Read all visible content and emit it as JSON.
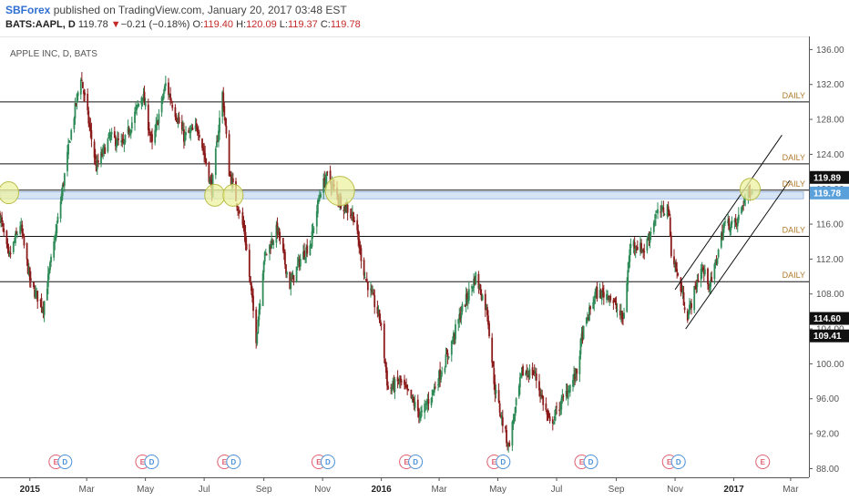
{
  "header": {
    "publisher": "SBForex",
    "published_text": "published on TradingView.com, January 20, 2017 03:48 EST",
    "symbol": "BATS:AAPL, D",
    "last": "119.78",
    "change_arrow": "▼",
    "change": "−0.21 (−0.18%)",
    "o_label": "O:",
    "o_value": "119.40",
    "h_label": "H:",
    "h_value": "120.09",
    "l_label": "L:",
    "l_value": "119.37",
    "c_label": "C:",
    "c_value": "119.78"
  },
  "chart_data": {
    "type": "candlestick",
    "title": "APPLE INC, D, BATS",
    "y_axis": {
      "ylim": [
        87,
        137.5
      ],
      "ticks": [
        88,
        92,
        96,
        100,
        104,
        108,
        112,
        116,
        120,
        124,
        128,
        132,
        136
      ],
      "tick_labels": [
        "88.00",
        "92.00",
        "96.00",
        "100.00",
        "104.00",
        "108.00",
        "112.00",
        "116.00",
        "120.00",
        "124.00",
        "128.00",
        "132.00",
        "136.00"
      ],
      "position": "right"
    },
    "x_axis": {
      "range": [
        "2014-12-01",
        "2017-03-20"
      ],
      "ticks": [
        {
          "date": "2015-01-01",
          "label": "2015",
          "bold": true
        },
        {
          "date": "2015-03-01",
          "label": "Mar"
        },
        {
          "date": "2015-05-01",
          "label": "May"
        },
        {
          "date": "2015-07-01",
          "label": "Jul"
        },
        {
          "date": "2015-09-01",
          "label": "Sep"
        },
        {
          "date": "2015-11-01",
          "label": "Nov"
        },
        {
          "date": "2016-01-01",
          "label": "2016",
          "bold": true
        },
        {
          "date": "2016-03-01",
          "label": "Mar"
        },
        {
          "date": "2016-05-01",
          "label": "May"
        },
        {
          "date": "2016-07-01",
          "label": "Jul"
        },
        {
          "date": "2016-09-01",
          "label": "Sep"
        },
        {
          "date": "2016-11-01",
          "label": "Nov"
        },
        {
          "date": "2017-01-01",
          "label": "2017",
          "bold": true
        },
        {
          "date": "2017-03-01",
          "label": "Mar"
        }
      ]
    },
    "price_path": [
      [
        "2014-12-01",
        117
      ],
      [
        "2014-12-10",
        112
      ],
      [
        "2014-12-22",
        116
      ],
      [
        "2015-01-02",
        109
      ],
      [
        "2015-01-15",
        106.5
      ],
      [
        "2015-01-28",
        115
      ],
      [
        "2015-02-12",
        126
      ],
      [
        "2015-02-23",
        133
      ],
      [
        "2015-03-11",
        122.5
      ],
      [
        "2015-03-25",
        126
      ],
      [
        "2015-04-08",
        125
      ],
      [
        "2015-04-28",
        131
      ],
      [
        "2015-05-08",
        125
      ],
      [
        "2015-05-22",
        132
      ],
      [
        "2015-06-10",
        126
      ],
      [
        "2015-06-25",
        127
      ],
      [
        "2015-07-09",
        120
      ],
      [
        "2015-07-20",
        131
      ],
      [
        "2015-07-27",
        122
      ],
      [
        "2015-08-12",
        115
      ],
      [
        "2015-08-24",
        103
      ],
      [
        "2015-09-01",
        112
      ],
      [
        "2015-09-15",
        115.5
      ],
      [
        "2015-09-28",
        109
      ],
      [
        "2015-10-09",
        112
      ],
      [
        "2015-10-20",
        114
      ],
      [
        "2015-10-30",
        120
      ],
      [
        "2015-11-06",
        121.5
      ],
      [
        "2015-11-20",
        118.5
      ],
      [
        "2015-12-03",
        117
      ],
      [
        "2015-12-15",
        110
      ],
      [
        "2015-12-31",
        105
      ],
      [
        "2016-01-08",
        97
      ],
      [
        "2016-01-20",
        98
      ],
      [
        "2016-02-01",
        96
      ],
      [
        "2016-02-11",
        94
      ],
      [
        "2016-02-24",
        97
      ],
      [
        "2016-03-10",
        101
      ],
      [
        "2016-03-24",
        106
      ],
      [
        "2016-04-08",
        110
      ],
      [
        "2016-04-20",
        106
      ],
      [
        "2016-04-28",
        97
      ],
      [
        "2016-05-12",
        90.5
      ],
      [
        "2016-05-26",
        99
      ],
      [
        "2016-06-08",
        99
      ],
      [
        "2016-06-24",
        93
      ],
      [
        "2016-07-08",
        96
      ],
      [
        "2016-07-22",
        99
      ],
      [
        "2016-07-27",
        103
      ],
      [
        "2016-08-10",
        108
      ],
      [
        "2016-08-24",
        108
      ],
      [
        "2016-09-08",
        105
      ],
      [
        "2016-09-16",
        114
      ],
      [
        "2016-09-30",
        113
      ],
      [
        "2016-10-12",
        117
      ],
      [
        "2016-10-25",
        118
      ],
      [
        "2016-10-28",
        113
      ],
      [
        "2016-11-14",
        105.5
      ],
      [
        "2016-11-28",
        111
      ],
      [
        "2016-12-08",
        109
      ],
      [
        "2016-12-22",
        116
      ],
      [
        "2017-01-04",
        116
      ],
      [
        "2017-01-12",
        119
      ],
      [
        "2017-01-19",
        119.78
      ]
    ],
    "last_candle": {
      "date": "2017-01-20",
      "open": 119.4,
      "high": 120.09,
      "low": 119.37,
      "close": 119.78
    },
    "horizontal_levels": [
      {
        "label": "DAILY",
        "value": 130
      },
      {
        "label": "DAILY",
        "value": 122.9
      },
      {
        "label": "DAILY",
        "value": 119.89
      },
      {
        "label": "DAILY",
        "value": 114.6
      },
      {
        "label": "DAILY",
        "value": 109.41
      }
    ],
    "support_band": [
      118.9,
      119.7
    ],
    "price_tags": [
      {
        "value": 119.89,
        "label": "119.89",
        "color": "#111111"
      },
      {
        "value": 119.78,
        "label": "119.78",
        "color": "#5aa1db"
      },
      {
        "value": 114.6,
        "label": "114.60",
        "color": "#111111"
      },
      {
        "value": 109.41,
        "label": "109.41",
        "color": "#111111"
      }
    ],
    "channel_lines": [
      {
        "from": [
          "2016-11-01",
          108.5
        ],
        "to": [
          "2017-02-20",
          126.2
        ]
      },
      {
        "from": [
          "2016-11-12",
          104
        ],
        "to": [
          "2017-02-28",
          121
        ]
      }
    ],
    "circles": [
      {
        "date": "2014-12-10",
        "value": 119.6
      },
      {
        "date": "2015-07-12",
        "value": 119.3
      },
      {
        "date": "2015-07-31",
        "value": 119.3
      },
      {
        "date": "2015-11-19",
        "value": 119.8
      },
      {
        "date": "2017-01-18",
        "value": 120
      }
    ],
    "events": [
      {
        "date": "2015-01-28",
        "items": [
          "E",
          "D"
        ]
      },
      {
        "date": "2015-04-28",
        "items": [
          "E",
          "D"
        ]
      },
      {
        "date": "2015-07-22",
        "items": [
          "E",
          "D"
        ]
      },
      {
        "date": "2015-10-28",
        "items": [
          "E",
          "D"
        ]
      },
      {
        "date": "2016-01-27",
        "items": [
          "E",
          "D"
        ]
      },
      {
        "date": "2016-04-27",
        "items": [
          "E",
          "D"
        ]
      },
      {
        "date": "2016-07-27",
        "items": [
          "E",
          "D"
        ]
      },
      {
        "date": "2016-10-26",
        "items": [
          "E",
          "D"
        ]
      },
      {
        "date": "2017-01-31",
        "items": [
          "E"
        ]
      }
    ],
    "colors": {
      "up": "#2e8b57",
      "down": "#8b1a1a",
      "level": "#111111",
      "channel": "#111111",
      "band_fill": "#cfe0f5",
      "band_stroke": "#8fb3e0",
      "circle_fill": "#eef2a0",
      "circle_stroke": "#b9bd48",
      "event_e": "#e06070",
      "event_d": "#4a90d9"
    }
  }
}
